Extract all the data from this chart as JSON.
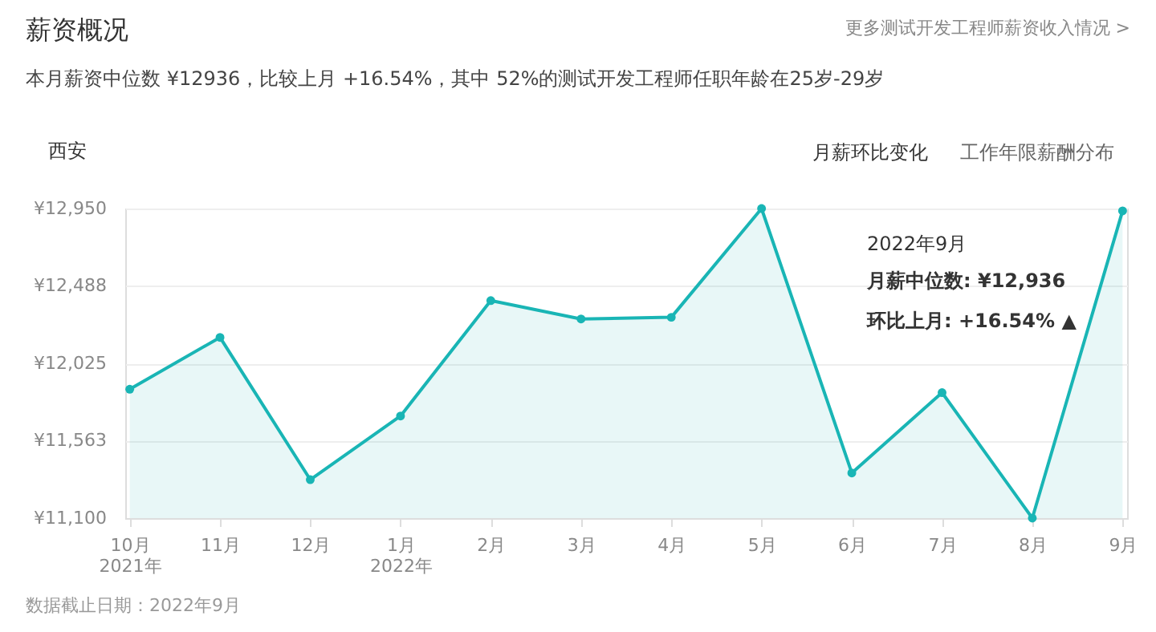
{
  "chart_data": {
    "type": "area",
    "title": "薪资概况",
    "subtitle": "本月薪资中位数 ¥12936，比较上月 +16.54%，其中 52%的测试开发工程师任职年龄在25岁-29岁",
    "categories": [
      "10月\n2021年",
      "11月",
      "12月",
      "1月\n2022年",
      "2月",
      "3月",
      "4月",
      "5月",
      "6月",
      "7月",
      "8月",
      "9月"
    ],
    "series": [
      {
        "color": "#19b5b5",
        "values": [
          11870,
          12180,
          11330,
          11710,
          12400,
          12290,
          12300,
          12950,
          11370,
          11850,
          11100,
          12936
        ]
      }
    ],
    "ylim": [
      11100,
      12950
    ],
    "yticks": [
      {
        "value": 11100,
        "label": "¥11,100"
      },
      {
        "value": 11563,
        "label": "¥11,563"
      },
      {
        "value": 12025,
        "label": "¥12,025"
      },
      {
        "value": 12488,
        "label": "¥12,488"
      },
      {
        "value": 12950,
        "label": "¥12,950"
      }
    ],
    "grid": "y",
    "marker": "circle",
    "annotations": [
      "更多测试开发工程师薪资收入情况 >",
      "西安",
      "月薪环比变化",
      "工作年限薪酬分布",
      "2022年9月",
      "月薪中位数:  ¥12,936",
      "环比上月:  +16.54% ▲",
      "数据截止日期：2022年9月"
    ]
  }
}
